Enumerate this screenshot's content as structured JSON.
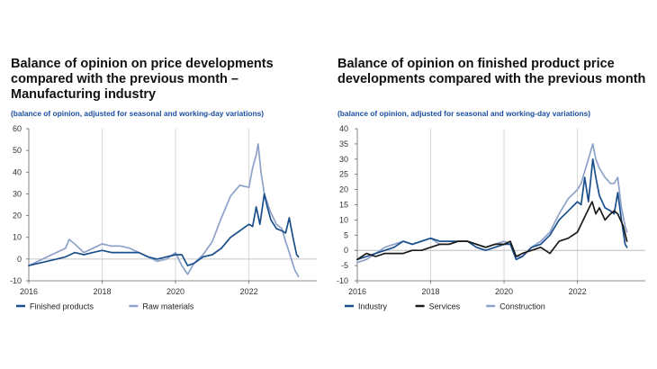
{
  "chart_data": [
    {
      "type": "line",
      "title": "Balance of opinion on price developments compared with the previous month – Manufacturing industry",
      "subtitle": "(balance of opinion, adjusted for seasonal and working-day variations)",
      "xlabel": "",
      "ylabel": "",
      "xlim": [
        2016.0,
        2023.85
      ],
      "ylim": [
        -10,
        60
      ],
      "yticks": [
        -10,
        0,
        10,
        20,
        30,
        40,
        50,
        60
      ],
      "xticks": [
        2016,
        2018,
        2020,
        2022
      ],
      "xtick_labels": [
        "2016",
        "2018",
        "2020",
        "2022"
      ],
      "grid": "vertical at year ticks",
      "legend_position": "bottom-left",
      "series": [
        {
          "name": "Finished products",
          "color": "#1a4f8b",
          "x": [
            2016.0,
            2016.25,
            2016.5,
            2016.75,
            2017.0,
            2017.25,
            2017.5,
            2017.75,
            2018.0,
            2018.25,
            2018.5,
            2018.75,
            2019.0,
            2019.25,
            2019.5,
            2019.75,
            2020.0,
            2020.17,
            2020.33,
            2020.5,
            2020.75,
            2021.0,
            2021.25,
            2021.5,
            2021.75,
            2022.0,
            2022.1,
            2022.2,
            2022.3,
            2022.42,
            2022.5,
            2022.6,
            2022.75,
            2022.9,
            2023.0,
            2023.1,
            2023.2,
            2023.3,
            2023.35
          ],
          "y": [
            -3,
            -2,
            -1,
            0,
            1,
            3,
            2,
            3,
            4,
            3,
            3,
            3,
            3,
            1,
            0,
            1,
            2,
            2,
            -3,
            -2,
            1,
            2,
            5,
            10,
            13,
            16,
            15,
            24,
            16,
            30,
            24,
            18,
            14,
            13,
            12,
            19,
            10,
            2,
            1
          ]
        },
        {
          "name": "Raw materials",
          "color": "#8ea1c9",
          "x": [
            2016.0,
            2016.25,
            2016.5,
            2016.75,
            2017.0,
            2017.1,
            2017.25,
            2017.5,
            2017.75,
            2018.0,
            2018.25,
            2018.5,
            2018.75,
            2019.0,
            2019.25,
            2019.5,
            2019.75,
            2020.0,
            2020.17,
            2020.33,
            2020.5,
            2020.75,
            2021.0,
            2021.25,
            2021.5,
            2021.75,
            2022.0,
            2022.1,
            2022.2,
            2022.25,
            2022.33,
            2022.42,
            2022.58,
            2022.75,
            2022.9,
            2023.0,
            2023.1,
            2023.25,
            2023.35
          ],
          "y": [
            -3,
            -1,
            1,
            3,
            5,
            9,
            7,
            3,
            5,
            7,
            6,
            6,
            5,
            3,
            1,
            -1,
            0,
            3,
            -3,
            -7,
            -2,
            2,
            8,
            19,
            29,
            34,
            33,
            42,
            48,
            53,
            40,
            30,
            22,
            16,
            14,
            8,
            3,
            -5,
            -8
          ]
        }
      ]
    },
    {
      "type": "line",
      "title": "Balance of opinion on finished product price developments compared with the previous month",
      "subtitle": "(balance of opinion, adjusted for seasonal and working-day variations)",
      "xlabel": "",
      "ylabel": "",
      "xlim": [
        2016.0,
        2023.85
      ],
      "ylim": [
        -10,
        40
      ],
      "yticks": [
        -10,
        -5,
        0,
        5,
        10,
        15,
        20,
        25,
        30,
        35,
        40
      ],
      "xticks": [
        2016,
        2018,
        2020,
        2022
      ],
      "xtick_labels": [
        "2016",
        "2018",
        "2020",
        "2022"
      ],
      "grid": "vertical at year ticks",
      "legend_position": "bottom-left",
      "series": [
        {
          "name": "Industry",
          "color": "#1a4f8b",
          "x": [
            2016.0,
            2016.25,
            2016.5,
            2016.75,
            2017.0,
            2017.25,
            2017.5,
            2017.75,
            2018.0,
            2018.25,
            2018.5,
            2018.75,
            2019.0,
            2019.25,
            2019.5,
            2019.75,
            2020.0,
            2020.17,
            2020.33,
            2020.5,
            2020.75,
            2021.0,
            2021.25,
            2021.5,
            2021.75,
            2022.0,
            2022.1,
            2022.2,
            2022.3,
            2022.42,
            2022.5,
            2022.6,
            2022.75,
            2022.9,
            2023.0,
            2023.1,
            2023.2,
            2023.3,
            2023.35
          ],
          "y": [
            -3,
            -2,
            -1,
            0,
            1,
            3,
            2,
            3,
            4,
            3,
            3,
            3,
            3,
            1,
            0,
            1,
            2,
            2,
            -3,
            -2,
            1,
            2,
            5,
            10,
            13,
            16,
            15,
            24,
            16,
            30,
            24,
            18,
            14,
            13,
            12,
            19,
            10,
            2,
            1
          ]
        },
        {
          "name": "Services",
          "color": "#1a1a1a",
          "x": [
            2016.0,
            2016.25,
            2016.5,
            2016.75,
            2017.0,
            2017.25,
            2017.5,
            2017.75,
            2018.0,
            2018.25,
            2018.5,
            2018.75,
            2019.0,
            2019.25,
            2019.5,
            2019.75,
            2020.0,
            2020.17,
            2020.33,
            2020.5,
            2020.75,
            2021.0,
            2021.25,
            2021.5,
            2021.75,
            2022.0,
            2022.2,
            2022.4,
            2022.5,
            2022.6,
            2022.75,
            2022.9,
            2023.0,
            2023.1,
            2023.25,
            2023.35
          ],
          "y": [
            -3,
            -1,
            -2,
            -1,
            -1,
            -1,
            0,
            0,
            1,
            2,
            2,
            3,
            3,
            2,
            1,
            2,
            2,
            3,
            -2,
            -1,
            0,
            1,
            -1,
            3,
            4,
            6,
            11,
            16,
            12,
            14,
            10,
            12,
            13,
            12,
            8,
            3
          ]
        },
        {
          "name": "Construction",
          "color": "#8ea1c9",
          "x": [
            2016.0,
            2016.25,
            2016.5,
            2016.75,
            2017.0,
            2017.25,
            2017.5,
            2017.75,
            2018.0,
            2018.25,
            2018.5,
            2018.75,
            2019.0,
            2019.25,
            2019.5,
            2019.75,
            2020.0,
            2020.17,
            2020.33,
            2020.5,
            2020.75,
            2021.0,
            2021.25,
            2021.5,
            2021.75,
            2022.0,
            2022.1,
            2022.2,
            2022.3,
            2022.42,
            2022.5,
            2022.6,
            2022.75,
            2022.9,
            2023.0,
            2023.1,
            2023.2,
            2023.3,
            2023.35
          ],
          "y": [
            -4,
            -3,
            -1,
            1,
            2,
            3,
            2,
            3,
            4,
            2,
            2,
            3,
            3,
            2,
            1,
            2,
            3,
            2,
            -2,
            -2,
            1,
            3,
            6,
            12,
            17,
            20,
            22,
            26,
            30,
            35,
            30,
            27,
            24,
            22,
            22,
            24,
            14,
            8,
            6
          ]
        }
      ]
    }
  ]
}
